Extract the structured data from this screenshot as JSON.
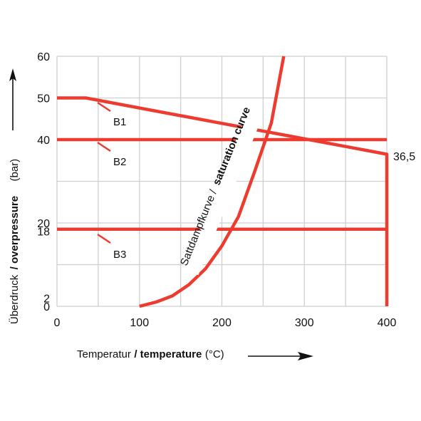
{
  "chart_data": {
    "type": "line",
    "xlabel_normal": "Temperatur",
    "xlabel_bold": "/ temperature",
    "xlabel_unit": "(°C)",
    "ylabel_normal": "Überdruck",
    "ylabel_bold": "/ overpressure",
    "ylabel_unit": "(bar)",
    "x_ticks": [
      "0",
      "100",
      "200",
      "300",
      "400"
    ],
    "y_ticks": [
      {
        "label": "60",
        "value": 60
      },
      {
        "label": "50",
        "value": 50
      },
      {
        "label": "40",
        "value": 40
      },
      {
        "label": "20",
        "value": 20
      },
      {
        "label": "18",
        "value": 18
      },
      {
        "label": "2",
        "value": 2
      },
      {
        "label": "0",
        "value": 0
      }
    ],
    "xlim": [
      0,
      400
    ],
    "ylim": [
      0,
      60
    ],
    "grid": true,
    "series": [
      {
        "name": "B1",
        "points": [
          [
            0,
            50
          ],
          [
            35,
            50
          ],
          [
            400,
            36.5
          ],
          [
            400,
            0
          ]
        ]
      },
      {
        "name": "B2",
        "points": [
          [
            0,
            40
          ],
          [
            400,
            40
          ]
        ]
      },
      {
        "name": "B3",
        "points": [
          [
            0,
            18.5
          ],
          [
            400,
            18.5
          ]
        ]
      },
      {
        "name": "Sattdampfkurve / saturation curve",
        "points": [
          [
            100,
            0
          ],
          [
            120,
            1
          ],
          [
            140,
            2.5
          ],
          [
            160,
            5.2
          ],
          [
            180,
            9
          ],
          [
            200,
            14.5
          ],
          [
            220,
            21.5
          ],
          [
            240,
            32.5
          ],
          [
            260,
            44
          ],
          [
            275,
            60
          ]
        ]
      }
    ],
    "annotations": [
      {
        "text": "36,5",
        "x": 400,
        "y": 36.5
      },
      {
        "text": "B1"
      },
      {
        "text": "B2"
      },
      {
        "text": "B3"
      }
    ],
    "curve_label_normal": "Sattdampfkurve /",
    "curve_label_bold": "saturation curve"
  }
}
